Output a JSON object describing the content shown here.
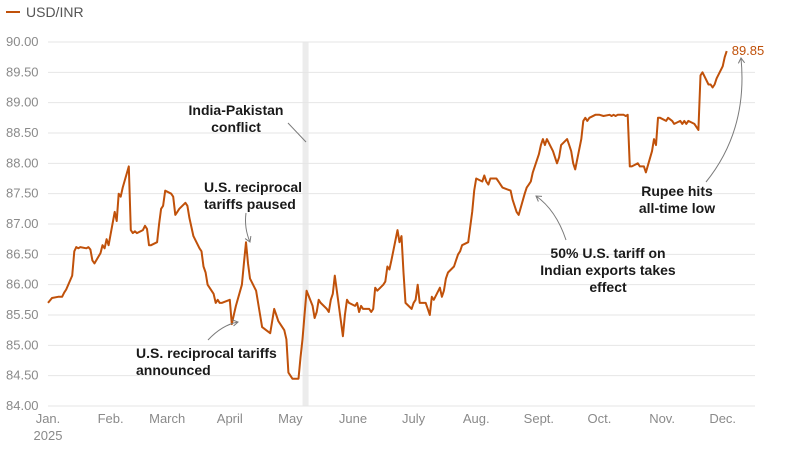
{
  "legend": {
    "label": "USD/INR",
    "color": "#c0510a"
  },
  "colors": {
    "line": "#c0510a",
    "shade": "#ececec",
    "grid": "#e6e6e6",
    "annotation_arrow": "#7a7a7a"
  },
  "chart_data": {
    "type": "line",
    "title": "",
    "xlabel": "",
    "ylabel": "",
    "ylim": [
      84.0,
      90.0
    ],
    "xlim": [
      "2025-01-01",
      "2025-12-17"
    ],
    "grid": true,
    "legend_position": "top-left",
    "y_ticks": [
      "84.00",
      "84.50",
      "85.00",
      "85.50",
      "86.00",
      "86.50",
      "87.00",
      "87.50",
      "88.00",
      "88.50",
      "89.00",
      "89.50",
      "90.00"
    ],
    "x_ticks": [
      {
        "label": "Jan.",
        "x": "2025-01-01",
        "sub": "2025"
      },
      {
        "label": "Feb.",
        "x": "2025-02-01"
      },
      {
        "label": "March",
        "x": "2025-03-01"
      },
      {
        "label": "April",
        "x": "2025-04-01"
      },
      {
        "label": "May",
        "x": "2025-05-01"
      },
      {
        "label": "June",
        "x": "2025-06-01"
      },
      {
        "label": "July",
        "x": "2025-07-01"
      },
      {
        "label": "Aug.",
        "x": "2025-08-01"
      },
      {
        "label": "Sept.",
        "x": "2025-09-01"
      },
      {
        "label": "Oct.",
        "x": "2025-10-01"
      },
      {
        "label": "Nov.",
        "x": "2025-11-01"
      },
      {
        "label": "Dec.",
        "x": "2025-12-01"
      }
    ],
    "shaded_period": {
      "start": "2025-05-07",
      "end": "2025-05-10",
      "label": "India-Pakistan conflict"
    },
    "series": [
      {
        "name": "USD/INR",
        "points": [
          [
            "2025-01-01",
            85.7
          ],
          [
            "2025-01-03",
            85.78
          ],
          [
            "2025-01-06",
            85.8
          ],
          [
            "2025-01-08",
            85.8
          ],
          [
            "2025-01-09",
            85.87
          ],
          [
            "2025-01-10",
            85.92
          ],
          [
            "2025-01-13",
            86.15
          ],
          [
            "2025-01-14",
            86.55
          ],
          [
            "2025-01-15",
            86.62
          ],
          [
            "2025-01-16",
            86.6
          ],
          [
            "2025-01-17",
            86.62
          ],
          [
            "2025-01-20",
            86.6
          ],
          [
            "2025-01-21",
            86.62
          ],
          [
            "2025-01-22",
            86.58
          ],
          [
            "2025-01-23",
            86.4
          ],
          [
            "2025-01-24",
            86.35
          ],
          [
            "2025-01-27",
            86.52
          ],
          [
            "2025-01-28",
            86.65
          ],
          [
            "2025-01-29",
            86.6
          ],
          [
            "2025-01-30",
            86.75
          ],
          [
            "2025-01-31",
            86.65
          ],
          [
            "2025-02-03",
            87.2
          ],
          [
            "2025-02-04",
            87.05
          ],
          [
            "2025-02-05",
            87.5
          ],
          [
            "2025-02-06",
            87.45
          ],
          [
            "2025-02-07",
            87.6
          ],
          [
            "2025-02-10",
            87.95
          ],
          [
            "2025-02-11",
            86.9
          ],
          [
            "2025-02-12",
            86.85
          ],
          [
            "2025-02-13",
            86.88
          ],
          [
            "2025-02-14",
            86.85
          ],
          [
            "2025-02-17",
            86.9
          ],
          [
            "2025-02-18",
            86.97
          ],
          [
            "2025-02-19",
            86.92
          ],
          [
            "2025-02-20",
            86.65
          ],
          [
            "2025-02-21",
            86.65
          ],
          [
            "2025-02-24",
            86.7
          ],
          [
            "2025-02-25",
            87.0
          ],
          [
            "2025-02-26",
            87.25
          ],
          [
            "2025-02-27",
            87.3
          ],
          [
            "2025-02-28",
            87.55
          ],
          [
            "2025-03-03",
            87.5
          ],
          [
            "2025-03-04",
            87.45
          ],
          [
            "2025-03-05",
            87.15
          ],
          [
            "2025-03-06",
            87.2
          ],
          [
            "2025-03-07",
            87.25
          ],
          [
            "2025-03-10",
            87.35
          ],
          [
            "2025-03-11",
            87.3
          ],
          [
            "2025-03-12",
            87.1
          ],
          [
            "2025-03-13",
            86.95
          ],
          [
            "2025-03-14",
            86.8
          ],
          [
            "2025-03-17",
            86.6
          ],
          [
            "2025-03-18",
            86.55
          ],
          [
            "2025-03-19",
            86.3
          ],
          [
            "2025-03-20",
            86.2
          ],
          [
            "2025-03-21",
            86.0
          ],
          [
            "2025-03-24",
            85.85
          ],
          [
            "2025-03-25",
            85.7
          ],
          [
            "2025-03-26",
            85.75
          ],
          [
            "2025-03-27",
            85.7
          ],
          [
            "2025-03-28",
            85.7
          ],
          [
            "2025-04-01",
            85.75
          ],
          [
            "2025-04-02",
            85.35
          ],
          [
            "2025-04-03",
            85.5
          ],
          [
            "2025-04-04",
            85.65
          ],
          [
            "2025-04-07",
            86.0
          ],
          [
            "2025-04-08",
            86.35
          ],
          [
            "2025-04-09",
            86.7
          ],
          [
            "2025-04-10",
            86.35
          ],
          [
            "2025-04-11",
            86.1
          ],
          [
            "2025-04-14",
            85.9
          ],
          [
            "2025-04-15",
            85.7
          ],
          [
            "2025-04-16",
            85.5
          ],
          [
            "2025-04-17",
            85.3
          ],
          [
            "2025-04-21",
            85.2
          ],
          [
            "2025-04-22",
            85.4
          ],
          [
            "2025-04-23",
            85.6
          ],
          [
            "2025-04-24",
            85.5
          ],
          [
            "2025-04-25",
            85.4
          ],
          [
            "2025-04-28",
            85.25
          ],
          [
            "2025-04-29",
            85.1
          ],
          [
            "2025-04-30",
            84.55
          ],
          [
            "2025-05-02",
            84.45
          ],
          [
            "2025-05-05",
            84.45
          ],
          [
            "2025-05-06",
            84.8
          ],
          [
            "2025-05-07",
            85.1
          ],
          [
            "2025-05-08",
            85.5
          ],
          [
            "2025-05-09",
            85.9
          ],
          [
            "2025-05-12",
            85.65
          ],
          [
            "2025-05-13",
            85.45
          ],
          [
            "2025-05-14",
            85.55
          ],
          [
            "2025-05-15",
            85.75
          ],
          [
            "2025-05-16",
            85.7
          ],
          [
            "2025-05-19",
            85.6
          ],
          [
            "2025-05-20",
            85.55
          ],
          [
            "2025-05-21",
            85.75
          ],
          [
            "2025-05-22",
            85.85
          ],
          [
            "2025-05-23",
            86.15
          ],
          [
            "2025-05-26",
            85.4
          ],
          [
            "2025-05-27",
            85.15
          ],
          [
            "2025-05-28",
            85.5
          ],
          [
            "2025-05-29",
            85.75
          ],
          [
            "2025-05-30",
            85.7
          ],
          [
            "2025-06-02",
            85.65
          ],
          [
            "2025-06-03",
            85.7
          ],
          [
            "2025-06-04",
            85.55
          ],
          [
            "2025-06-05",
            85.65
          ],
          [
            "2025-06-06",
            85.6
          ],
          [
            "2025-06-09",
            85.6
          ],
          [
            "2025-06-10",
            85.55
          ],
          [
            "2025-06-11",
            85.6
          ],
          [
            "2025-06-12",
            85.95
          ],
          [
            "2025-06-13",
            85.9
          ],
          [
            "2025-06-16",
            86.0
          ],
          [
            "2025-06-17",
            86.05
          ],
          [
            "2025-06-18",
            86.3
          ],
          [
            "2025-06-19",
            86.25
          ],
          [
            "2025-06-20",
            86.4
          ],
          [
            "2025-06-23",
            86.9
          ],
          [
            "2025-06-24",
            86.7
          ],
          [
            "2025-06-25",
            86.8
          ],
          [
            "2025-06-26",
            86.2
          ],
          [
            "2025-06-27",
            85.7
          ],
          [
            "2025-06-30",
            85.6
          ],
          [
            "2025-07-01",
            85.7
          ],
          [
            "2025-07-02",
            85.75
          ],
          [
            "2025-07-03",
            86.0
          ],
          [
            "2025-07-04",
            85.7
          ],
          [
            "2025-07-07",
            85.7
          ],
          [
            "2025-07-08",
            85.6
          ],
          [
            "2025-07-09",
            85.5
          ],
          [
            "2025-07-10",
            85.8
          ],
          [
            "2025-07-11",
            85.75
          ],
          [
            "2025-07-14",
            85.95
          ],
          [
            "2025-07-15",
            85.8
          ],
          [
            "2025-07-16",
            85.9
          ],
          [
            "2025-07-17",
            86.1
          ],
          [
            "2025-07-18",
            86.2
          ],
          [
            "2025-07-21",
            86.3
          ],
          [
            "2025-07-22",
            86.4
          ],
          [
            "2025-07-23",
            86.5
          ],
          [
            "2025-07-24",
            86.55
          ],
          [
            "2025-07-25",
            86.65
          ],
          [
            "2025-07-28",
            86.7
          ],
          [
            "2025-07-29",
            86.95
          ],
          [
            "2025-07-30",
            87.2
          ],
          [
            "2025-07-31",
            87.55
          ],
          [
            "2025-08-01",
            87.75
          ],
          [
            "2025-08-04",
            87.7
          ],
          [
            "2025-08-05",
            87.8
          ],
          [
            "2025-08-06",
            87.7
          ],
          [
            "2025-08-07",
            87.65
          ],
          [
            "2025-08-08",
            87.75
          ],
          [
            "2025-08-11",
            87.75
          ],
          [
            "2025-08-12",
            87.7
          ],
          [
            "2025-08-13",
            87.65
          ],
          [
            "2025-08-14",
            87.6
          ],
          [
            "2025-08-18",
            87.55
          ],
          [
            "2025-08-19",
            87.4
          ],
          [
            "2025-08-20",
            87.3
          ],
          [
            "2025-08-21",
            87.2
          ],
          [
            "2025-08-22",
            87.15
          ],
          [
            "2025-08-25",
            87.5
          ],
          [
            "2025-08-26",
            87.6
          ],
          [
            "2025-08-27",
            87.65
          ],
          [
            "2025-08-28",
            87.7
          ],
          [
            "2025-08-29",
            87.85
          ],
          [
            "2025-09-01",
            88.15
          ],
          [
            "2025-09-02",
            88.3
          ],
          [
            "2025-09-03",
            88.4
          ],
          [
            "2025-09-04",
            88.3
          ],
          [
            "2025-09-05",
            88.4
          ],
          [
            "2025-09-08",
            88.2
          ],
          [
            "2025-09-09",
            88.1
          ],
          [
            "2025-09-10",
            88.0
          ],
          [
            "2025-09-11",
            88.1
          ],
          [
            "2025-09-12",
            88.3
          ],
          [
            "2025-09-15",
            88.4
          ],
          [
            "2025-09-16",
            88.3
          ],
          [
            "2025-09-17",
            88.2
          ],
          [
            "2025-09-18",
            88.0
          ],
          [
            "2025-09-19",
            87.9
          ],
          [
            "2025-09-22",
            88.4
          ],
          [
            "2025-09-23",
            88.7
          ],
          [
            "2025-09-24",
            88.75
          ],
          [
            "2025-09-25",
            88.7
          ],
          [
            "2025-09-26",
            88.75
          ],
          [
            "2025-09-29",
            88.8
          ],
          [
            "2025-09-30",
            88.8
          ],
          [
            "2025-10-01",
            88.8
          ],
          [
            "2025-10-03",
            88.78
          ],
          [
            "2025-10-06",
            88.8
          ],
          [
            "2025-10-07",
            88.78
          ],
          [
            "2025-10-08",
            88.8
          ],
          [
            "2025-10-09",
            88.78
          ],
          [
            "2025-10-10",
            88.8
          ],
          [
            "2025-10-13",
            88.8
          ],
          [
            "2025-10-14",
            88.78
          ],
          [
            "2025-10-15",
            88.8
          ],
          [
            "2025-10-16",
            87.95
          ],
          [
            "2025-10-17",
            87.95
          ],
          [
            "2025-10-20",
            88.0
          ],
          [
            "2025-10-21",
            87.95
          ],
          [
            "2025-10-23",
            87.95
          ],
          [
            "2025-10-24",
            87.85
          ],
          [
            "2025-10-27",
            88.2
          ],
          [
            "2025-10-28",
            88.4
          ],
          [
            "2025-10-29",
            88.3
          ],
          [
            "2025-10-30",
            88.75
          ],
          [
            "2025-10-31",
            88.75
          ],
          [
            "2025-11-03",
            88.7
          ],
          [
            "2025-11-04",
            88.75
          ],
          [
            "2025-11-06",
            88.7
          ],
          [
            "2025-11-07",
            88.65
          ],
          [
            "2025-11-10",
            88.7
          ],
          [
            "2025-11-11",
            88.65
          ],
          [
            "2025-11-12",
            88.7
          ],
          [
            "2025-11-13",
            88.65
          ],
          [
            "2025-11-14",
            88.7
          ],
          [
            "2025-11-17",
            88.65
          ],
          [
            "2025-11-18",
            88.6
          ],
          [
            "2025-11-19",
            88.55
          ],
          [
            "2025-11-20",
            89.45
          ],
          [
            "2025-11-21",
            89.5
          ],
          [
            "2025-11-24",
            89.3
          ],
          [
            "2025-11-25",
            89.3
          ],
          [
            "2025-11-26",
            89.25
          ],
          [
            "2025-11-27",
            89.3
          ],
          [
            "2025-11-28",
            89.4
          ],
          [
            "2025-12-01",
            89.6
          ],
          [
            "2025-12-02",
            89.75
          ],
          [
            "2025-12-03",
            89.85
          ]
        ]
      }
    ],
    "end_label": "89.85",
    "annotations": [
      {
        "id": "tariffs-announced",
        "lines": [
          "U.S. reciprocal tariffs",
          "announced"
        ],
        "date": "2025-04-02",
        "value": 85.35
      },
      {
        "id": "tariffs-paused",
        "lines": [
          "U.S. reciprocal",
          "tariffs paused"
        ],
        "date": "2025-04-09",
        "value": 86.7
      },
      {
        "id": "india-pakistan",
        "lines": [
          "India-Pakistan",
          "conflict"
        ],
        "date": "2025-05-07",
        "value": 88.2
      },
      {
        "id": "fifty-percent-tariff",
        "lines": [
          "50% U.S. tariff on",
          "Indian exports takes",
          "effect"
        ],
        "date": "2025-08-27",
        "value": 87.6
      },
      {
        "id": "all-time-low",
        "lines": [
          "Rupee hits",
          "all-time low"
        ],
        "date": "2025-12-03",
        "value": 89.85
      }
    ]
  }
}
